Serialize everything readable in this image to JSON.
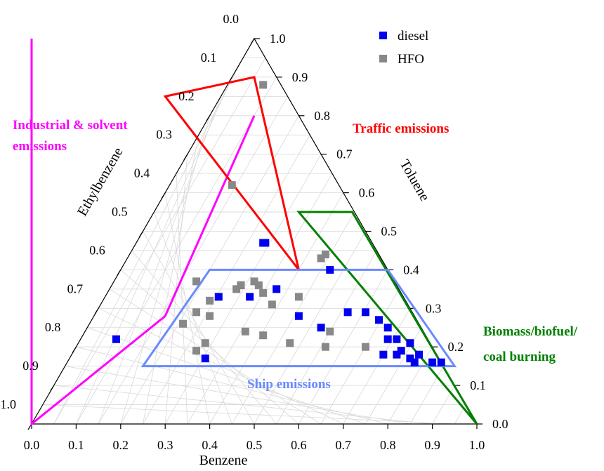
{
  "chart_data": {
    "type": "scatter",
    "subtype": "ternary",
    "axes": {
      "bottom": {
        "label": "Benzene",
        "ticks": [
          "0.0",
          "0.1",
          "0.2",
          "0.3",
          "0.4",
          "0.5",
          "0.6",
          "0.7",
          "0.8",
          "0.9",
          "1.0"
        ]
      },
      "right": {
        "label": "Toluene",
        "ticks": [
          "0.0",
          "0.1",
          "0.2",
          "0.3",
          "0.4",
          "0.5",
          "0.6",
          "0.7",
          "0.8",
          "0.9",
          "1.0"
        ]
      },
      "left": {
        "label": "Ethylbenzene",
        "ticks": [
          "0.0",
          "0.1",
          "0.2",
          "0.3",
          "0.4",
          "0.5",
          "0.6",
          "0.7",
          "0.8",
          "0.9",
          "1.0"
        ]
      }
    },
    "grid": true,
    "legend_position": "top-right",
    "series": [
      {
        "name": "diesel",
        "color": "#0000ee",
        "marker": "square",
        "points": [
          [
            0.19,
            0.22
          ],
          [
            0.39,
            0.17
          ],
          [
            0.42,
            0.33
          ],
          [
            0.47,
            0.36
          ],
          [
            0.52,
            0.47
          ],
          [
            0.525,
            0.47
          ],
          [
            0.49,
            0.33
          ],
          [
            0.55,
            0.35
          ],
          [
            0.6,
            0.28
          ],
          [
            0.67,
            0.4
          ],
          [
            0.65,
            0.25
          ],
          [
            0.71,
            0.29
          ],
          [
            0.75,
            0.29
          ],
          [
            0.78,
            0.27
          ],
          [
            0.8,
            0.25
          ],
          [
            0.8,
            0.22
          ],
          [
            0.82,
            0.22
          ],
          [
            0.85,
            0.21
          ],
          [
            0.83,
            0.19
          ],
          [
            0.82,
            0.18
          ],
          [
            0.85,
            0.17
          ],
          [
            0.87,
            0.18
          ],
          [
            0.79,
            0.18
          ],
          [
            0.86,
            0.16
          ],
          [
            0.9,
            0.16
          ],
          [
            0.92,
            0.16
          ]
        ]
      },
      {
        "name": "HFO",
        "color": "#888888",
        "marker": "square",
        "points": [
          [
            0.52,
            0.88
          ],
          [
            0.45,
            0.62
          ],
          [
            0.65,
            0.43
          ],
          [
            0.66,
            0.44
          ],
          [
            0.37,
            0.37
          ],
          [
            0.47,
            0.36
          ],
          [
            0.46,
            0.35
          ],
          [
            0.51,
            0.36
          ],
          [
            0.5,
            0.37
          ],
          [
            0.52,
            0.34
          ],
          [
            0.54,
            0.31
          ],
          [
            0.37,
            0.29
          ],
          [
            0.34,
            0.26
          ],
          [
            0.4,
            0.32
          ],
          [
            0.4,
            0.28
          ],
          [
            0.48,
            0.24
          ],
          [
            0.6,
            0.33
          ],
          [
            0.67,
            0.24
          ],
          [
            0.52,
            0.23
          ],
          [
            0.39,
            0.21
          ],
          [
            0.37,
            0.19
          ],
          [
            0.58,
            0.21
          ],
          [
            0.66,
            0.2
          ],
          [
            0.75,
            0.2
          ]
        ]
      }
    ],
    "regions": [
      {
        "name": "Industrial & solvent emissions",
        "color": "#ff00ff",
        "vertices": [
          [
            0.0,
            1.0
          ],
          [
            0.0,
            0.0
          ],
          [
            0.3,
            0.28
          ],
          [
            0.5,
            0.8
          ]
        ]
      },
      {
        "name": "Traffic emissions",
        "color": "#ff0000",
        "vertices": [
          [
            0.5,
            0.9
          ],
          [
            0.6,
            0.4
          ],
          [
            0.4,
            0.7
          ],
          [
            0.3,
            0.85
          ]
        ]
      },
      {
        "name": "Biomass/biofuel/coal burning",
        "color": "#008000",
        "vertices": [
          [
            0.6,
            0.55
          ],
          [
            0.72,
            0.55
          ],
          [
            1.0,
            0.0
          ],
          [
            0.6,
            0.55
          ]
        ]
      },
      {
        "name": "Ship emissions",
        "color": "#6a8aff",
        "vertices": [
          [
            0.25,
            0.15
          ],
          [
            0.4,
            0.4
          ],
          [
            0.8,
            0.4
          ],
          [
            0.95,
            0.15
          ]
        ]
      }
    ],
    "region_labels": {
      "industrial": [
        "Industrial & solvent",
        "emissions"
      ],
      "traffic": [
        "Traffic emissions"
      ],
      "biomass": [
        "Biomass/biofuel/",
        "coal burning"
      ],
      "ship": [
        "Ship emissions"
      ]
    }
  }
}
